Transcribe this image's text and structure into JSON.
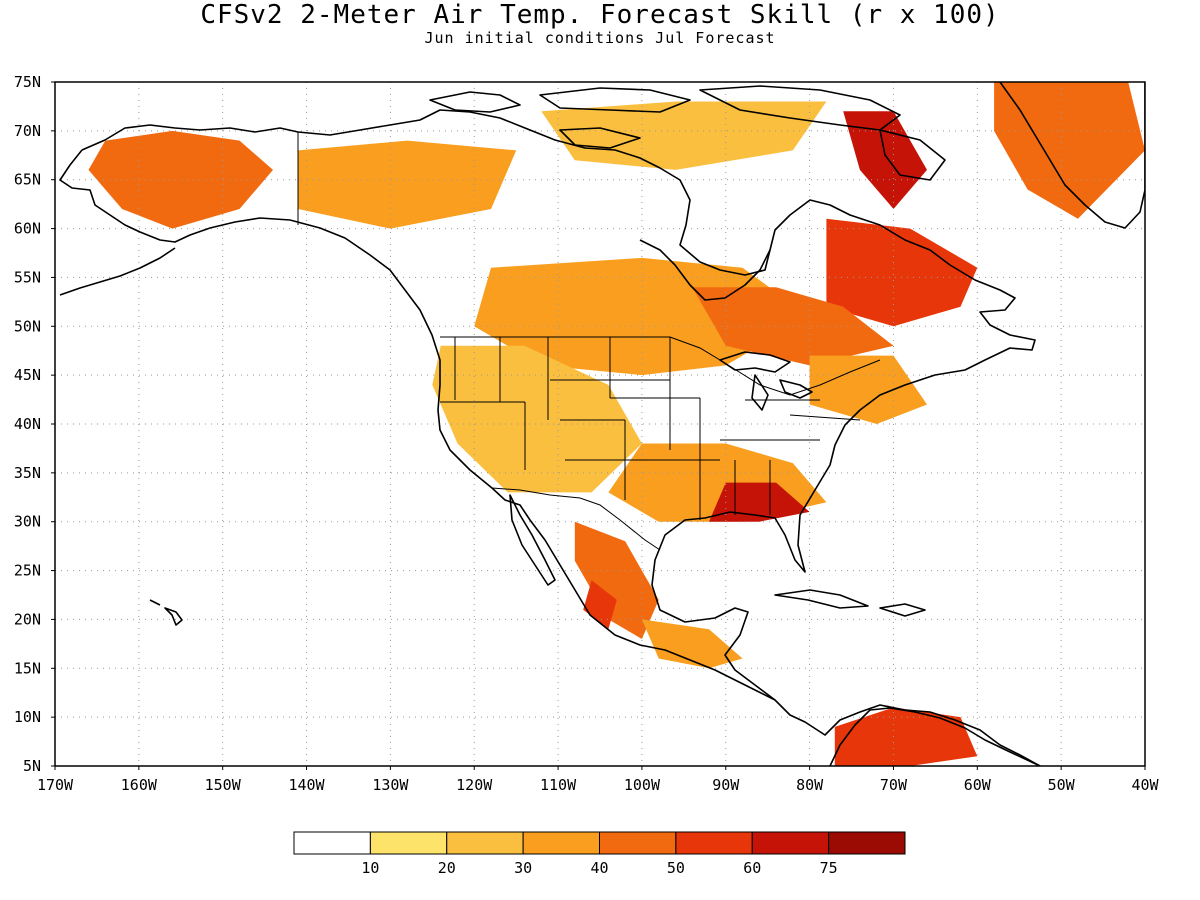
{
  "title": "CFSv2 2-Meter Air Temp. Forecast Skill (r x 100)",
  "subtitle": "Jun initial conditions  Jul Forecast",
  "map": {
    "lon_range": [
      -170,
      -40
    ],
    "lat_range": [
      5,
      75
    ],
    "lat_ticks": [
      {
        "value": 75,
        "label": "75N"
      },
      {
        "value": 70,
        "label": "70N"
      },
      {
        "value": 65,
        "label": "65N"
      },
      {
        "value": 60,
        "label": "60N"
      },
      {
        "value": 55,
        "label": "55N"
      },
      {
        "value": 50,
        "label": "50N"
      },
      {
        "value": 45,
        "label": "45N"
      },
      {
        "value": 40,
        "label": "40N"
      },
      {
        "value": 35,
        "label": "35N"
      },
      {
        "value": 30,
        "label": "30N"
      },
      {
        "value": 25,
        "label": "25N"
      },
      {
        "value": 20,
        "label": "20N"
      },
      {
        "value": 15,
        "label": "15N"
      },
      {
        "value": 10,
        "label": "10N"
      },
      {
        "value": 5,
        "label": "5N"
      }
    ],
    "lon_ticks": [
      {
        "value": -170,
        "label": "170W"
      },
      {
        "value": -160,
        "label": "160W"
      },
      {
        "value": -150,
        "label": "150W"
      },
      {
        "value": -140,
        "label": "140W"
      },
      {
        "value": -130,
        "label": "130W"
      },
      {
        "value": -120,
        "label": "120W"
      },
      {
        "value": -110,
        "label": "110W"
      },
      {
        "value": -100,
        "label": "100W"
      },
      {
        "value": -90,
        "label": "90W"
      },
      {
        "value": -80,
        "label": "80W"
      },
      {
        "value": -70,
        "label": "70W"
      },
      {
        "value": -60,
        "label": "60W"
      },
      {
        "value": -50,
        "label": "50W"
      },
      {
        "value": -40,
        "label": "40W"
      }
    ],
    "gridlines": "dotted",
    "colors": {
      "land_outline": "#000000",
      "grid": "#9a9a9a",
      "background": "#ffffff"
    }
  },
  "colorbar": {
    "bins": [
      {
        "color": "#ffffff"
      },
      {
        "color": "#fde36a"
      },
      {
        "color": "#fbbf40"
      },
      {
        "color": "#f99e1e"
      },
      {
        "color": "#f26a10"
      },
      {
        "color": "#e8360b"
      },
      {
        "color": "#c51308"
      },
      {
        "color": "#9c0a04"
      }
    ],
    "labels": [
      "10",
      "20",
      "30",
      "40",
      "50",
      "60",
      "75"
    ]
  },
  "skill_regions": [
    {
      "level": 4,
      "color": "#f26a10",
      "points": [
        [
          -164,
          69
        ],
        [
          -156,
          70
        ],
        [
          -148,
          69
        ],
        [
          -144,
          66
        ],
        [
          -148,
          62
        ],
        [
          -156,
          60
        ],
        [
          -162,
          62
        ],
        [
          -166,
          66
        ]
      ]
    },
    {
      "level": 3,
      "color": "#f99e1e",
      "points": [
        [
          -141,
          68
        ],
        [
          -128,
          69
        ],
        [
          -115,
          68
        ],
        [
          -118,
          62
        ],
        [
          -130,
          60
        ],
        [
          -141,
          62
        ]
      ]
    },
    {
      "level": 2,
      "color": "#fbbf40",
      "points": [
        [
          -112,
          72
        ],
        [
          -96,
          73
        ],
        [
          -78,
          73
        ],
        [
          -82,
          68
        ],
        [
          -96,
          66
        ],
        [
          -108,
          67
        ]
      ]
    },
    {
      "level": 6,
      "color": "#c51308",
      "points": [
        [
          -76,
          72
        ],
        [
          -70,
          72
        ],
        [
          -66,
          66
        ],
        [
          -70,
          62
        ],
        [
          -74,
          66
        ]
      ]
    },
    {
      "level": 5,
      "color": "#e8360b",
      "points": [
        [
          -78,
          61
        ],
        [
          -68,
          60
        ],
        [
          -60,
          56
        ],
        [
          -62,
          52
        ],
        [
          -70,
          50
        ],
        [
          -78,
          52
        ]
      ]
    },
    {
      "level": 4,
      "color": "#f26a10",
      "points": [
        [
          -58,
          75
        ],
        [
          -42,
          75
        ],
        [
          -40,
          68
        ],
        [
          -48,
          61
        ],
        [
          -54,
          64
        ],
        [
          -58,
          70
        ]
      ]
    },
    {
      "level": 3,
      "color": "#f99e1e",
      "points": [
        [
          -118,
          56
        ],
        [
          -100,
          57
        ],
        [
          -88,
          56
        ],
        [
          -80,
          51
        ],
        [
          -90,
          46
        ],
        [
          -100,
          45
        ],
        [
          -112,
          46
        ],
        [
          -120,
          50
        ]
      ]
    },
    {
      "level": 4,
      "color": "#f26a10",
      "points": [
        [
          -94,
          54
        ],
        [
          -84,
          54
        ],
        [
          -76,
          52
        ],
        [
          -70,
          48
        ],
        [
          -80,
          46
        ],
        [
          -90,
          48
        ]
      ]
    },
    {
      "level": 2,
      "color": "#fbbf40",
      "points": [
        [
          -124,
          48
        ],
        [
          -114,
          48
        ],
        [
          -104,
          44
        ],
        [
          -100,
          38
        ],
        [
          -106,
          33
        ],
        [
          -116,
          33
        ],
        [
          -122,
          38
        ],
        [
          -125,
          44
        ]
      ]
    },
    {
      "level": 3,
      "color": "#f99e1e",
      "points": [
        [
          -100,
          38
        ],
        [
          -90,
          38
        ],
        [
          -82,
          36
        ],
        [
          -78,
          32
        ],
        [
          -88,
          30
        ],
        [
          -98,
          30
        ],
        [
          -104,
          33
        ]
      ]
    },
    {
      "level": 6,
      "color": "#c51308",
      "points": [
        [
          -90,
          34
        ],
        [
          -84,
          34
        ],
        [
          -80,
          31
        ],
        [
          -86,
          30
        ],
        [
          -92,
          30
        ]
      ]
    },
    {
      "level": 4,
      "color": "#f26a10",
      "points": [
        [
          -108,
          30
        ],
        [
          -102,
          28
        ],
        [
          -98,
          22
        ],
        [
          -100,
          18
        ],
        [
          -104,
          20
        ],
        [
          -108,
          26
        ]
      ]
    },
    {
      "level": 5,
      "color": "#e8360b",
      "points": [
        [
          -106,
          24
        ],
        [
          -103,
          22
        ],
        [
          -104,
          19
        ],
        [
          -107,
          21
        ]
      ]
    },
    {
      "level": 3,
      "color": "#f99e1e",
      "points": [
        [
          -100,
          20
        ],
        [
          -92,
          19
        ],
        [
          -88,
          16
        ],
        [
          -92,
          15
        ],
        [
          -98,
          16
        ]
      ]
    },
    {
      "level": 5,
      "color": "#e8360b",
      "points": [
        [
          -77,
          9
        ],
        [
          -70,
          11
        ],
        [
          -62,
          10
        ],
        [
          -60,
          6
        ],
        [
          -68,
          5
        ],
        [
          -77,
          5
        ]
      ]
    },
    {
      "level": 3,
      "color": "#f99e1e",
      "points": [
        [
          -80,
          47
        ],
        [
          -70,
          47
        ],
        [
          -66,
          42
        ],
        [
          -72,
          40
        ],
        [
          -80,
          42
        ]
      ]
    }
  ]
}
